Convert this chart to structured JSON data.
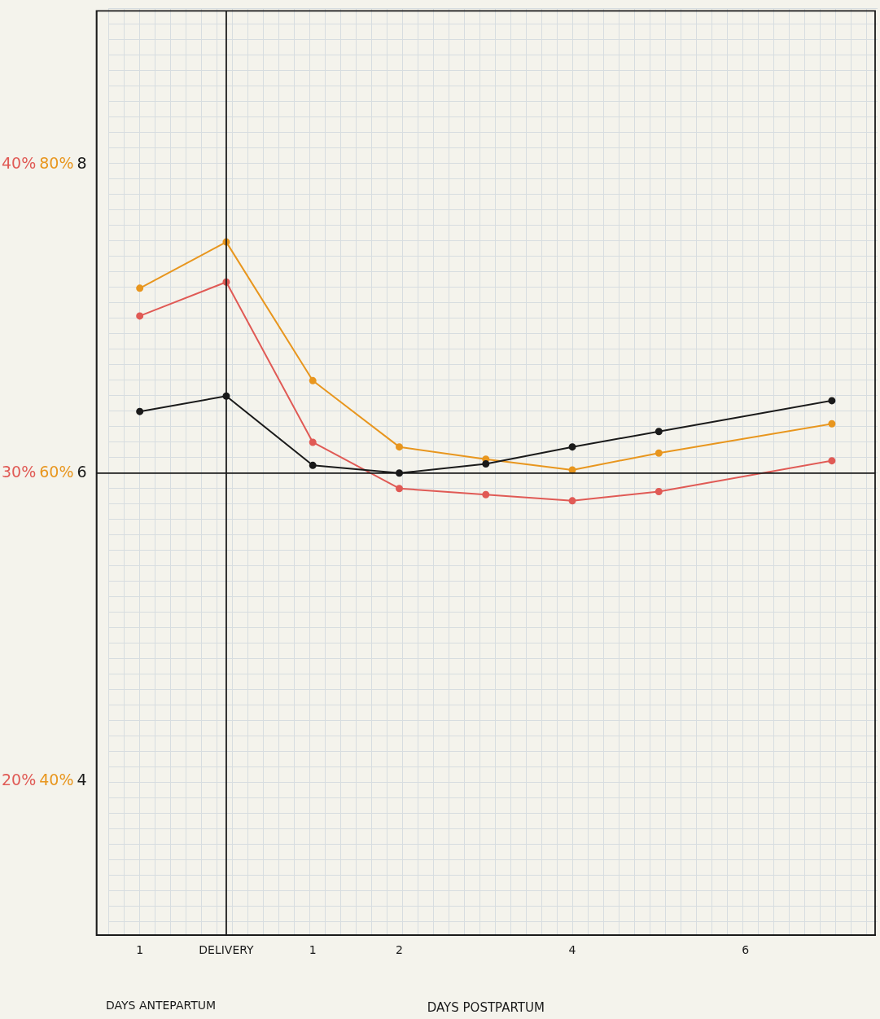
{
  "chart_data": {
    "type": "line",
    "xlabel": "DAYS POSTPARTUM",
    "annotations": [
      "DAYS ANTEPARTUM"
    ],
    "categories": [
      "1",
      "DELIVERY",
      "1",
      "2",
      null,
      "4",
      null,
      "6",
      null
    ],
    "series": [
      {
        "color": "#1a1a1a",
        "axis": "y",
        "values": [
          6.4,
          6.5,
          6.05,
          6.0,
          6.06,
          6.17,
          6.27,
          null,
          6.47
        ]
      },
      {
        "color": "#e8961e",
        "axis": "y2",
        "values": [
          72,
          75,
          66,
          61.7,
          60.9,
          60.2,
          61.3,
          null,
          63.2
        ]
      },
      {
        "color": "#e05a55",
        "axis": "y3",
        "values": [
          35.1,
          36.2,
          31.0,
          29.5,
          29.3,
          29.1,
          29.4,
          null,
          30.4
        ]
      }
    ],
    "ylim": [
      3,
      9
    ],
    "yticks": [
      4,
      6,
      8
    ],
    "y2lim": [
      30,
      90
    ],
    "y2ticks": [
      {
        "value": 40,
        "label": "40%"
      },
      {
        "value": 60,
        "label": "60%"
      },
      {
        "value": 80,
        "label": "80%"
      }
    ],
    "y3lim": [
      15,
      45
    ],
    "y3ticks": [
      {
        "value": 20,
        "label": "20%"
      },
      {
        "value": 30,
        "label": "30%"
      },
      {
        "value": 40,
        "label": "40%"
      }
    ],
    "ref_lines": [
      {
        "axis": "x",
        "value": "DELIVERY"
      },
      {
        "axis": "y",
        "value": 6
      }
    ],
    "grid": false,
    "legend": false,
    "marker": "circle",
    "line_style": "solid"
  }
}
